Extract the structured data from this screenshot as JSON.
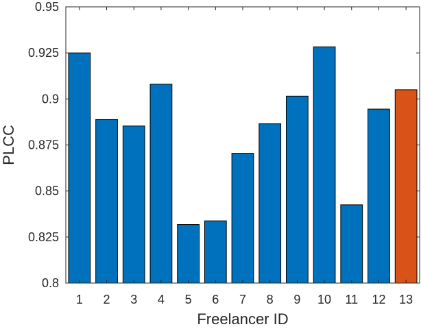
{
  "chart_data": {
    "type": "bar",
    "title": "",
    "xlabel": "Freelancer ID",
    "ylabel": "PLCC",
    "categories": [
      "1",
      "2",
      "3",
      "4",
      "5",
      "6",
      "7",
      "8",
      "9",
      "10",
      "11",
      "12",
      "13"
    ],
    "values": [
      0.925,
      0.8888,
      0.8853,
      0.908,
      0.8318,
      0.8338,
      0.8705,
      0.8865,
      0.9015,
      0.9283,
      0.8425,
      0.8945,
      0.905
    ],
    "highlight_index": 12,
    "ylim": [
      0.8,
      0.95
    ],
    "yticks": [
      0.8,
      0.825,
      0.85,
      0.875,
      0.9,
      0.925,
      0.95
    ],
    "ytick_labels": [
      "0.8",
      "0.825",
      "0.85",
      "0.875",
      "0.9",
      "0.925",
      "0.95"
    ],
    "grid": false,
    "colors": {
      "bar": "#0072BD",
      "highlight": "#D95319",
      "bar_edge": "#000000",
      "axis": "#262626"
    }
  }
}
